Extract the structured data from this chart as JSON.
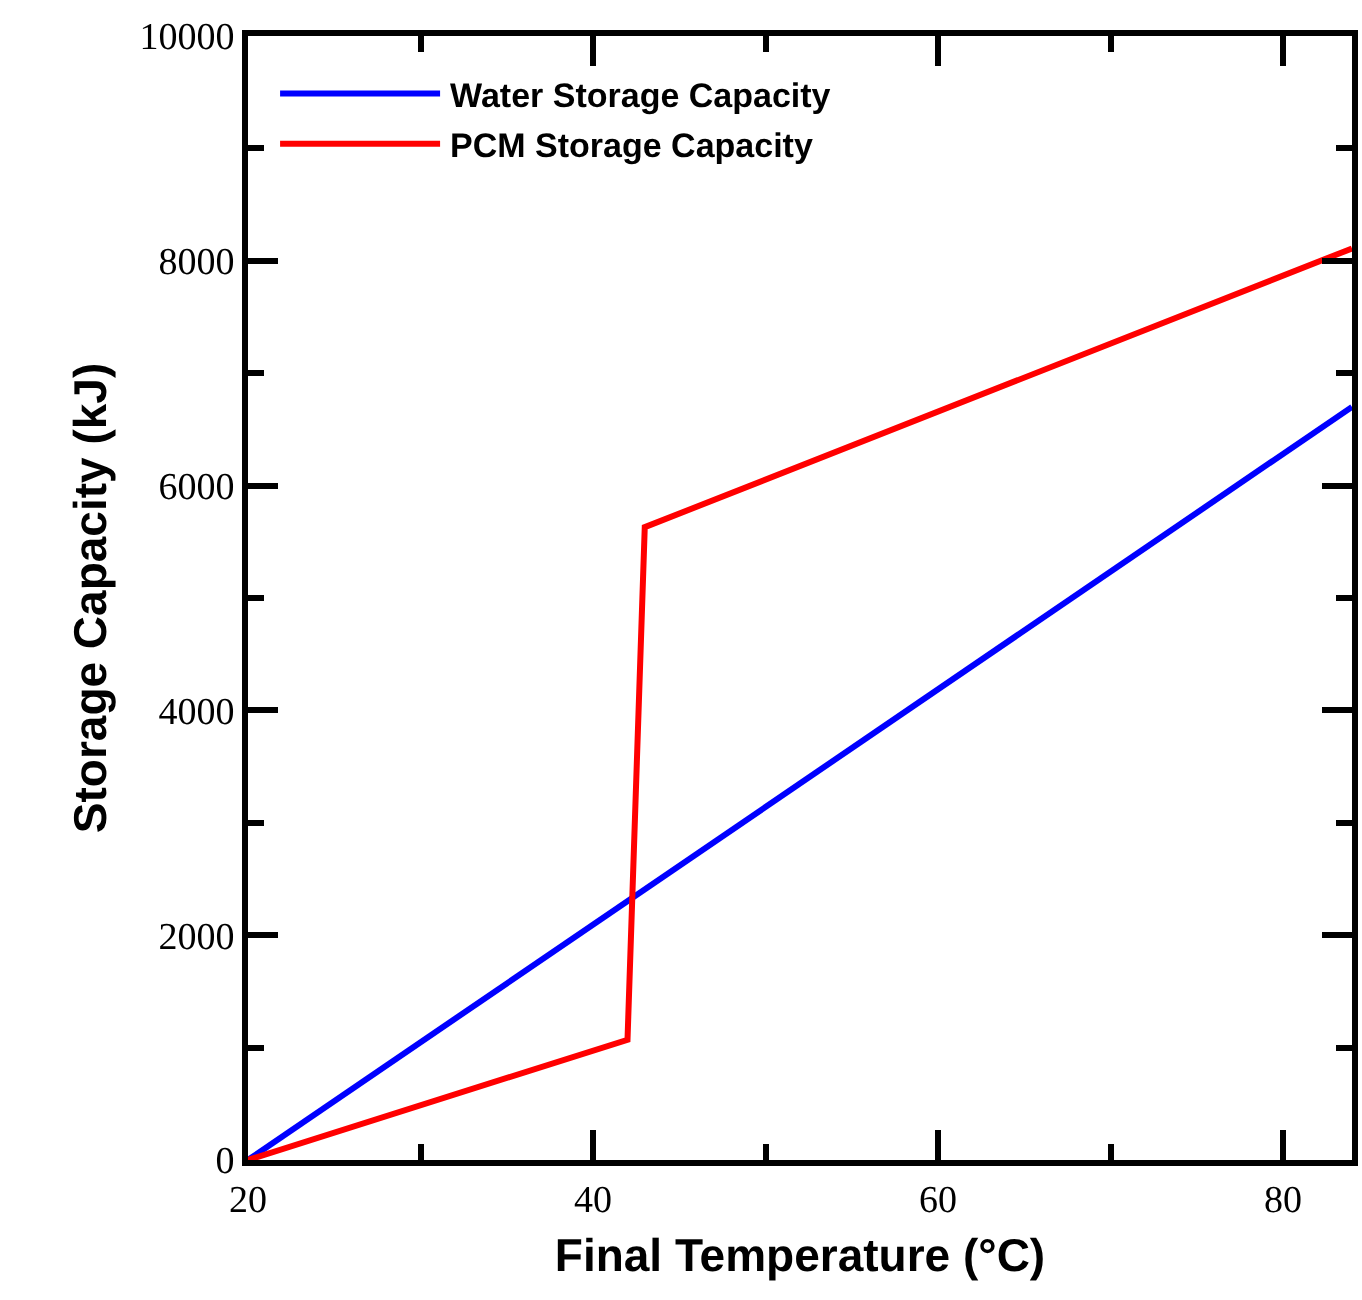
{
  "chart_data": {
    "type": "line",
    "xlabel": "Final Temperature (°C)",
    "ylabel": "Storage Capacity (kJ)",
    "xlim": [
      20,
      84
    ],
    "ylim": [
      0,
      10000
    ],
    "xticks": [
      20,
      {
        "value": 30,
        "label": null
      },
      40,
      {
        "value": 50,
        "label": null
      },
      60,
      {
        "value": 70,
        "label": null
      },
      80
    ],
    "yticks": [
      0,
      {
        "value": 1000,
        "label": null
      },
      2000,
      {
        "value": 3000,
        "label": null
      },
      4000,
      {
        "value": 5000,
        "label": null
      },
      6000,
      {
        "value": 7000,
        "label": null
      },
      8000,
      {
        "value": 9000,
        "label": null
      },
      10000
    ],
    "series": [
      {
        "name": "Water Storage Capacity",
        "color": "#0000ff",
        "x": [
          20,
          84
        ],
        "values": [
          0,
          6700
        ]
      },
      {
        "name": "PCM Storage Capacity",
        "color": "#ff0000",
        "x": [
          20,
          42,
          43,
          84
        ],
        "values": [
          0,
          1070,
          5630,
          8110
        ]
      }
    ],
    "legend": "top left",
    "grid": false,
    "marker": "none",
    "line_style": "solid"
  }
}
